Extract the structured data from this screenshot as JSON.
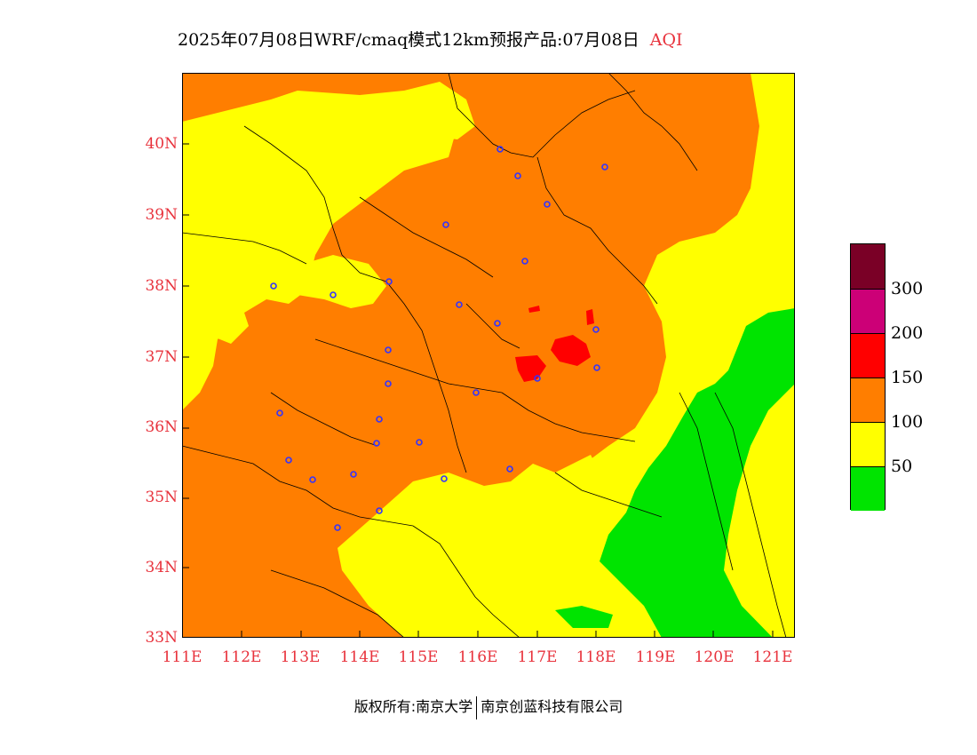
{
  "title": "2025年07月08日WRF/cmaq模式12km预报产品:07月08日",
  "title_tag": "AQI",
  "lat_labels": [
    "40N",
    "39N",
    "38N",
    "37N",
    "36N",
    "35N",
    "34N",
    "33N"
  ],
  "lon_labels": [
    "111E",
    "112E",
    "113E",
    "114E",
    "115E",
    "116E",
    "117E",
    "118E",
    "119E",
    "120E",
    "121E"
  ],
  "legend": {
    "colors": [
      "#7a0026",
      "#cc0077",
      "#ff0000",
      "#ff7e00",
      "#ffff00",
      "#00e400"
    ],
    "labels": [
      "300",
      "200",
      "150",
      "100",
      "50"
    ]
  },
  "footer": {
    "left": "版权所有:南京大学",
    "right": "南京创蓝科技有限公司"
  },
  "palette": {
    "good": "#00e400",
    "moderate": "#ffff00",
    "usg": "#ff7e00",
    "unhealthy": "#ff0000",
    "text_red": "#e8323c",
    "city_marker": "#3333ff"
  }
}
